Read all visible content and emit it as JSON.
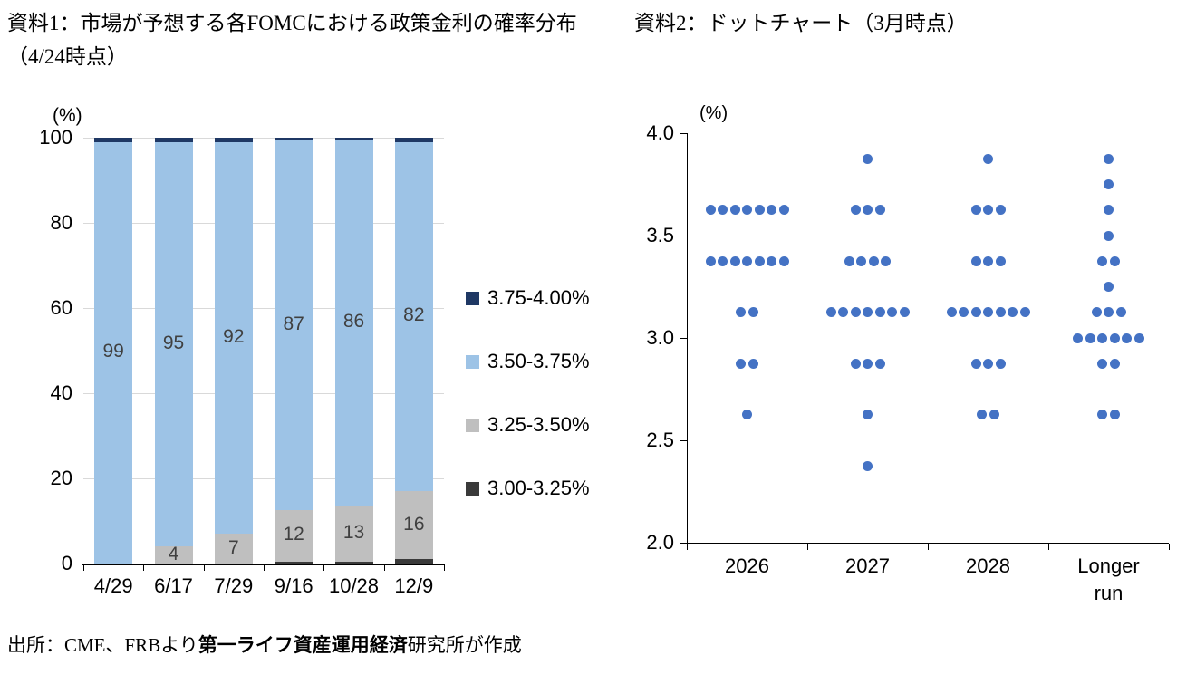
{
  "titles": {
    "chart1": "資料1：市場が予想する各FOMCにおける政策金利の確率分布（4/24時点）",
    "chart2": "資料2：ドットチャート（3月時点）"
  },
  "source": {
    "prefix": "出所：CME、FRBより",
    "bold": "第一ライフ資産運用経済",
    "suffix": "研究所が作成"
  },
  "chart_data": [
    {
      "type": "bar",
      "stacked": true,
      "title": "市場が予想する各FOMCにおける政策金利の確率分布（4/24時点）",
      "unit_label": "(%)",
      "categories": [
        "4/29",
        "6/17",
        "7/29",
        "9/16",
        "10/28",
        "12/9"
      ],
      "series": [
        {
          "name": "3.00-3.25%",
          "color": "#3a3a3a",
          "values": [
            0,
            0,
            0,
            0.5,
            0.5,
            1
          ],
          "labels": [
            "",
            "",
            "",
            "",
            "",
            ""
          ]
        },
        {
          "name": "3.25-3.50%",
          "color": "#bfbfbf",
          "values": [
            0,
            4,
            7,
            12,
            13,
            16
          ],
          "labels": [
            "",
            "4",
            "7",
            "12",
            "13",
            "16"
          ]
        },
        {
          "name": "3.50-3.75%",
          "color": "#9dc3e6",
          "values": [
            99,
            95,
            92,
            87,
            86,
            82
          ],
          "labels": [
            "99",
            "95",
            "92",
            "87",
            "86",
            "82"
          ]
        },
        {
          "name": "3.75-4.00%",
          "color": "#1f3864",
          "values": [
            1,
            1,
            1,
            0.5,
            0.5,
            1
          ],
          "labels": [
            "",
            "",
            "",
            "",
            "",
            ""
          ]
        }
      ],
      "legend_order": [
        "3.75-4.00%",
        "3.50-3.75%",
        "3.25-3.50%",
        "3.00-3.25%"
      ],
      "ylim": [
        0,
        100
      ],
      "yticks": [
        {
          "value": 0,
          "label": "0"
        },
        {
          "value": 20,
          "label": "20"
        },
        {
          "value": 40,
          "label": "40"
        },
        {
          "value": 60,
          "label": "60"
        },
        {
          "value": 80,
          "label": "80"
        },
        {
          "value": 100,
          "label": "100"
        }
      ],
      "grid": true,
      "legend_position": "right"
    },
    {
      "type": "scatter",
      "title": "ドットチャート（3月時点）",
      "unit_label": "(%)",
      "dot_color": "#4472c4",
      "categories": [
        "2026",
        "2027",
        "2028",
        "Longer run"
      ],
      "ylim": [
        2.0,
        4.0
      ],
      "yticks": [
        {
          "value": 2.0,
          "label": "2.0"
        },
        {
          "value": 2.5,
          "label": "2.5"
        },
        {
          "value": 3.0,
          "label": "3.0"
        },
        {
          "value": 3.5,
          "label": "3.5"
        },
        {
          "value": 4.0,
          "label": "4.0"
        }
      ],
      "grid": false,
      "dots": [
        {
          "category": "2026",
          "rate": 3.625,
          "count": 7
        },
        {
          "category": "2026",
          "rate": 3.375,
          "count": 7
        },
        {
          "category": "2026",
          "rate": 3.125,
          "count": 2
        },
        {
          "category": "2026",
          "rate": 2.875,
          "count": 2
        },
        {
          "category": "2026",
          "rate": 2.625,
          "count": 1
        },
        {
          "category": "2027",
          "rate": 3.875,
          "count": 1
        },
        {
          "category": "2027",
          "rate": 3.625,
          "count": 3
        },
        {
          "category": "2027",
          "rate": 3.375,
          "count": 4
        },
        {
          "category": "2027",
          "rate": 3.125,
          "count": 7
        },
        {
          "category": "2027",
          "rate": 2.875,
          "count": 3
        },
        {
          "category": "2027",
          "rate": 2.625,
          "count": 1
        },
        {
          "category": "2027",
          "rate": 2.375,
          "count": 1
        },
        {
          "category": "2028",
          "rate": 3.875,
          "count": 1
        },
        {
          "category": "2028",
          "rate": 3.625,
          "count": 3
        },
        {
          "category": "2028",
          "rate": 3.375,
          "count": 3
        },
        {
          "category": "2028",
          "rate": 3.125,
          "count": 7
        },
        {
          "category": "2028",
          "rate": 2.875,
          "count": 3
        },
        {
          "category": "2028",
          "rate": 2.625,
          "count": 2
        },
        {
          "category": "Longer run",
          "rate": 3.875,
          "count": 1
        },
        {
          "category": "Longer run",
          "rate": 3.75,
          "count": 1
        },
        {
          "category": "Longer run",
          "rate": 3.625,
          "count": 1
        },
        {
          "category": "Longer run",
          "rate": 3.5,
          "count": 1
        },
        {
          "category": "Longer run",
          "rate": 3.375,
          "count": 2
        },
        {
          "category": "Longer run",
          "rate": 3.25,
          "count": 1
        },
        {
          "category": "Longer run",
          "rate": 3.125,
          "count": 3
        },
        {
          "category": "Longer run",
          "rate": 3.0,
          "count": 6
        },
        {
          "category": "Longer run",
          "rate": 2.875,
          "count": 2
        },
        {
          "category": "Longer run",
          "rate": 2.625,
          "count": 2
        }
      ]
    }
  ]
}
